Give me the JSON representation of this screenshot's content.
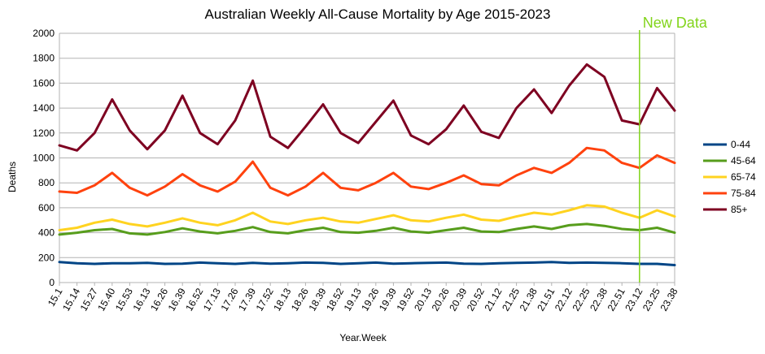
{
  "chart_data": {
    "type": "line",
    "title": "Australian Weekly All-Cause Mortality by Age 2015-2023",
    "xlabel": "Year.Week",
    "ylabel": "Deaths",
    "ylim": [
      0,
      2000
    ],
    "yticks": [
      0,
      200,
      400,
      600,
      800,
      1000,
      1200,
      1400,
      1600,
      1800,
      2000
    ],
    "x_tick_labels": [
      "15.1",
      "15.14",
      "15.27",
      "15.40",
      "15.53",
      "16.13",
      "16.26",
      "16.39",
      "16.52",
      "17.13",
      "17.26",
      "17.39",
      "17.52",
      "18.13",
      "18.26",
      "18.39",
      "18.52",
      "19.13",
      "19.26",
      "19.39",
      "19.52",
      "20.13",
      "20.26",
      "20.39",
      "20.52",
      "21.12",
      "21.25",
      "21.38",
      "21.51",
      "22.12",
      "22.25",
      "22.38",
      "22.51",
      "23.12",
      "23.25",
      "23.38"
    ],
    "grid": "horizontal",
    "legend_position": "right",
    "annotation": {
      "text": "New Data",
      "at_tick": "23.12",
      "color": "#81d41a"
    },
    "series": [
      {
        "name": "0-44",
        "color": "#004586",
        "values": [
          165,
          155,
          150,
          155,
          155,
          158,
          150,
          152,
          160,
          155,
          150,
          158,
          152,
          155,
          160,
          158,
          150,
          155,
          160,
          152,
          155,
          158,
          160,
          152,
          150,
          155,
          158,
          160,
          165,
          158,
          160,
          158,
          155,
          150,
          150,
          140
        ]
      },
      {
        "name": "45-64",
        "color": "#579d1c",
        "values": [
          385,
          400,
          420,
          430,
          395,
          385,
          405,
          435,
          410,
          395,
          415,
          445,
          405,
          395,
          420,
          440,
          405,
          400,
          415,
          440,
          410,
          400,
          420,
          440,
          410,
          405,
          430,
          450,
          430,
          460,
          470,
          455,
          430,
          420,
          440,
          400
        ]
      },
      {
        "name": "65-74",
        "color": "#ffd320",
        "values": [
          420,
          440,
          480,
          505,
          470,
          450,
          480,
          515,
          480,
          460,
          500,
          560,
          490,
          470,
          500,
          520,
          490,
          480,
          510,
          540,
          500,
          490,
          520,
          545,
          505,
          495,
          530,
          560,
          545,
          580,
          620,
          610,
          560,
          520,
          580,
          530
        ]
      },
      {
        "name": "75-84",
        "color": "#ff420e",
        "values": [
          730,
          720,
          780,
          880,
          760,
          700,
          770,
          870,
          780,
          730,
          810,
          970,
          760,
          700,
          770,
          880,
          760,
          740,
          800,
          880,
          770,
          750,
          800,
          860,
          790,
          780,
          860,
          920,
          880,
          960,
          1080,
          1060,
          960,
          920,
          1020,
          960
        ]
      },
      {
        "name": "85+",
        "color": "#7e0021",
        "values": [
          1100,
          1060,
          1200,
          1470,
          1220,
          1070,
          1220,
          1500,
          1200,
          1110,
          1300,
          1620,
          1170,
          1080,
          1250,
          1430,
          1200,
          1120,
          1290,
          1460,
          1180,
          1110,
          1230,
          1420,
          1210,
          1160,
          1400,
          1550,
          1360,
          1580,
          1750,
          1650,
          1300,
          1270,
          1560,
          1380
        ]
      }
    ]
  }
}
